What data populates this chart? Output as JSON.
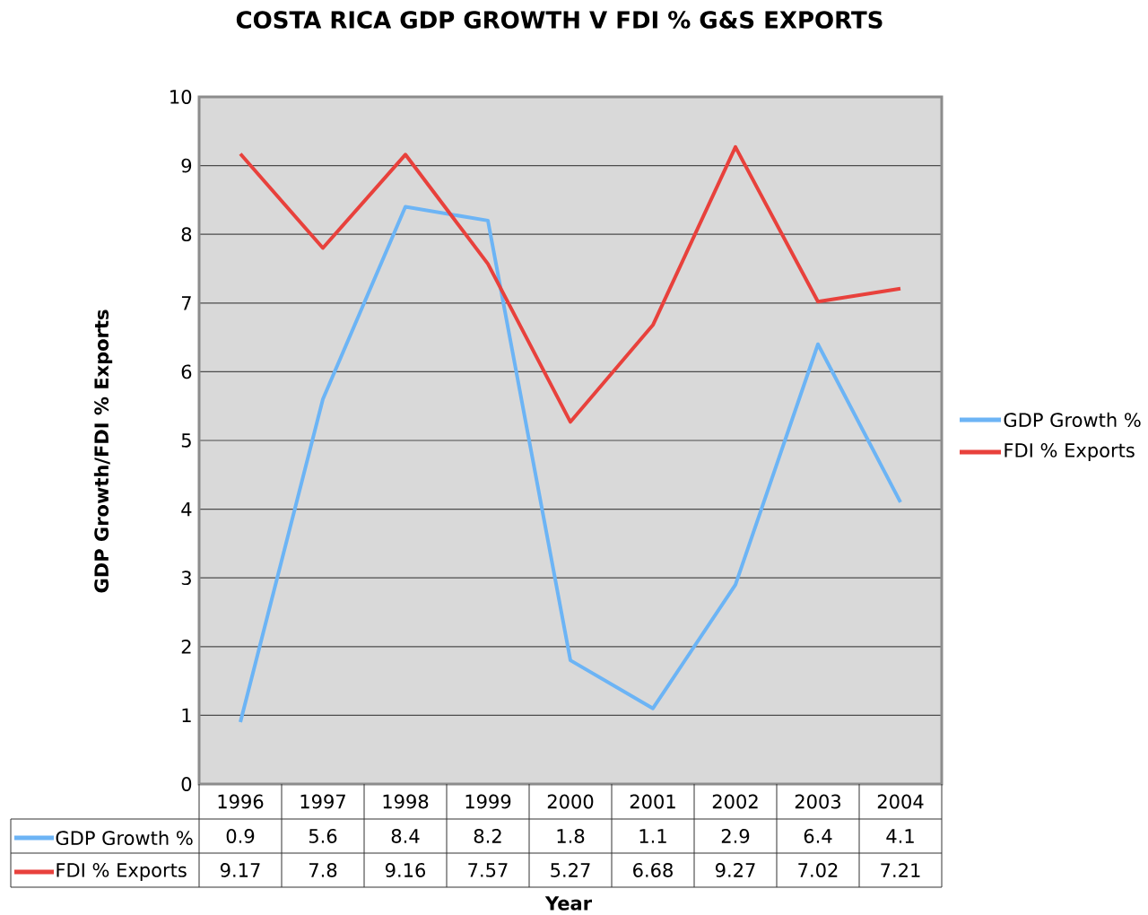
{
  "chart_data": {
    "type": "line",
    "title": "COSTA RICA GDP GROWTH V FDI % G&S EXPORTS",
    "xlabel": "Year",
    "ylabel": "GDP Growth/FDI % Exports",
    "categories": [
      "1996",
      "1997",
      "1998",
      "1999",
      "2000",
      "2001",
      "2002",
      "2003",
      "2004"
    ],
    "series": [
      {
        "name": "GDP Growth %",
        "color": "#6cb4f5",
        "values": [
          0.9,
          5.6,
          8.4,
          8.2,
          1.8,
          1.1,
          2.9,
          6.4,
          4.1
        ]
      },
      {
        "name": "FDI % Exports",
        "color": "#e8413c",
        "values": [
          9.17,
          7.8,
          9.16,
          7.57,
          5.27,
          6.68,
          9.27,
          7.02,
          7.21
        ]
      }
    ],
    "ylim": [
      0,
      10
    ],
    "yticks": [
      0,
      1,
      2,
      3,
      4,
      5,
      6,
      7,
      8,
      9,
      10
    ],
    "grid": "y",
    "legend": "right",
    "data_labels": true,
    "marker": "none",
    "line_style": "solid"
  }
}
